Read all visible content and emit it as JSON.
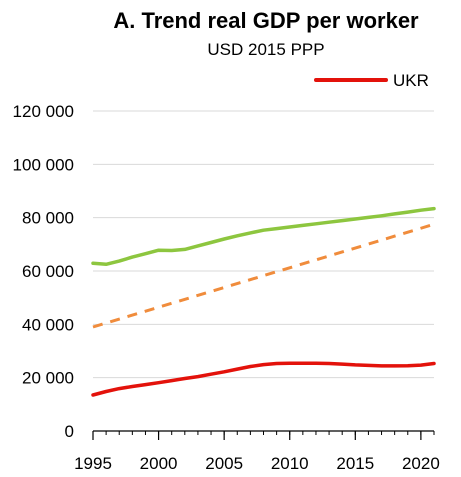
{
  "chart_data": {
    "type": "line",
    "title": "A. Trend real GDP per worker",
    "subtitle": "USD 2015 PPP",
    "xlabel": "",
    "ylabel": "",
    "xlim": [
      1995,
      2021
    ],
    "ylim": [
      0,
      120000
    ],
    "x_ticks": [
      1995,
      2000,
      2005,
      2010,
      2015,
      2020
    ],
    "x_tick_labels": [
      "1995",
      "2000",
      "2005",
      "2010",
      "2015",
      "2020"
    ],
    "y_ticks": [
      0,
      20000,
      40000,
      60000,
      80000,
      100000,
      120000
    ],
    "y_tick_labels": [
      "0",
      "20 000",
      "40 000",
      "60 000",
      "80 000",
      "100 000",
      "120 000"
    ],
    "grid": "horizontal",
    "legend_position": "top-right",
    "series": [
      {
        "name": "UKR",
        "color": "#e3120b",
        "style": "solid",
        "x": [
          1995,
          1996,
          1997,
          1998,
          1999,
          2000,
          2001,
          2002,
          2003,
          2004,
          2005,
          2006,
          2007,
          2008,
          2009,
          2010,
          2011,
          2012,
          2013,
          2014,
          2015,
          2016,
          2017,
          2018,
          2019,
          2020,
          2021
        ],
        "values": [
          13500,
          14800,
          15900,
          16700,
          17400,
          18100,
          18900,
          19700,
          20400,
          21300,
          22200,
          23200,
          24200,
          24900,
          25300,
          25400,
          25400,
          25400,
          25300,
          25100,
          24800,
          24600,
          24400,
          24400,
          24500,
          24700,
          25300
        ]
      },
      {
        "color": "#8dc63f",
        "style": "solid",
        "x": [
          1995,
          1996,
          1997,
          1998,
          1999,
          2000,
          2001,
          2002,
          2003,
          2004,
          2005,
          2006,
          2007,
          2008,
          2009,
          2010,
          2011,
          2012,
          2013,
          2014,
          2015,
          2016,
          2017,
          2018,
          2019,
          2020,
          2021
        ],
        "values": [
          62900,
          62500,
          63700,
          65200,
          66500,
          67800,
          67700,
          68100,
          69400,
          70700,
          72000,
          73200,
          74300,
          75300,
          75900,
          76500,
          77100,
          77700,
          78300,
          78900,
          79500,
          80100,
          80700,
          81400,
          82100,
          82800,
          83400
        ]
      },
      {
        "color": "#f08c3c",
        "style": "dashed",
        "x": [
          1995,
          2021
        ],
        "values": [
          39000,
          77500
        ]
      }
    ]
  }
}
